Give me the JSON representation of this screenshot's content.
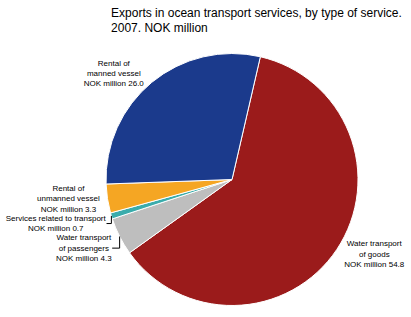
{
  "chart_data": {
    "type": "pie",
    "title": "Exports in ocean transport services, by type of service.",
    "subtitle": "2007. NOK million",
    "categories": [
      "Water transport\nof goods\nNOK million 54.8",
      "Water transport\nof passengers\nNOK million 4.3",
      "Services related to transport\nNOK million 0.7",
      "Rental of\nunmanned vessel\nNOK million 3.3",
      "Rental of\nmanned vessel\nNOK million 26.0"
    ],
    "values": [
      54.8,
      4.3,
      0.7,
      3.3,
      26.0
    ],
    "colors": [
      "#9B1B1B",
      "#BEBEBE",
      "#3AACAC",
      "#F5A623",
      "#1B3A8C"
    ]
  }
}
